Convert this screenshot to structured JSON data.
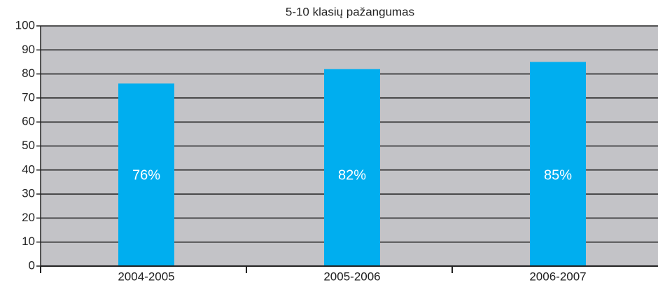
{
  "chart_data": {
    "type": "bar",
    "title": "5-10 klasių pažangumas",
    "categories": [
      "2004-2005",
      "2005-2006",
      "2006-2007"
    ],
    "values": [
      76,
      82,
      85
    ],
    "value_labels": [
      "76%",
      "82%",
      "85%"
    ],
    "color": "#00aeef",
    "ylim": [
      0,
      100
    ],
    "yticks": [
      0,
      10,
      20,
      30,
      40,
      50,
      60,
      70,
      80,
      90,
      100
    ],
    "grid": true
  }
}
